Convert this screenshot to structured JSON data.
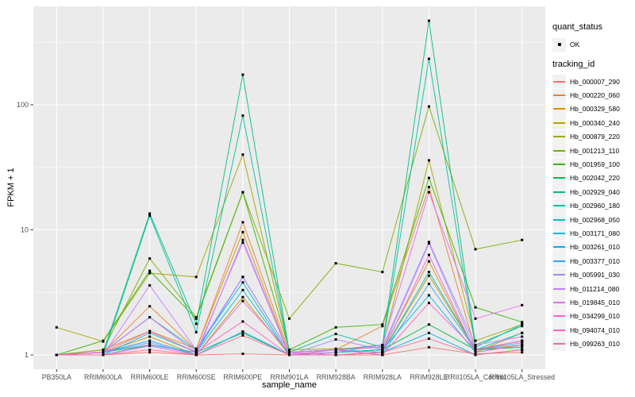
{
  "figure": {
    "bg": "#FFFFFF",
    "panel_bg": "#EBEBEB",
    "grid_color": "#FFFFFF",
    "tick_mark_color": "#333333",
    "tick_label_color": "#4D4D4D",
    "point_color": "#000000",
    "legend_key_bg": "#F2F2F2"
  },
  "chart_data": {
    "type": "line",
    "log_y": true,
    "title": "",
    "xlabel": "sample_name",
    "ylabel": "FPKM + 1",
    "legend_position": "right",
    "grid": "on",
    "point_legend": {
      "title": "quant_status",
      "label": "OK",
      "marker": "black-point"
    },
    "series_legend_title": "tracking_id",
    "y_tick_values": [
      1,
      10,
      100
    ],
    "y_tick_labels": [
      "1",
      "10",
      "100"
    ],
    "y_minor_gridlines": [
      3.1623,
      31.623,
      316.23
    ],
    "ylim": [
      0.93,
      560
    ],
    "categories": [
      "PB350LA",
      "RRIM600LA",
      "RRIM600LE",
      "RRIM600SE",
      "RRIM600PE",
      "RRIM901LA",
      "RRIM928BA",
      "RRIM928LA",
      "RRIM928LE",
      "RRII105LA_Control",
      "RRII105LA_Stressed"
    ],
    "series": [
      {
        "name": "Hb_000007_290",
        "color": "#F8766D",
        "values": [
          1.0,
          1.0,
          1.05,
          1.0,
          1.02,
          1.0,
          1.0,
          1.0,
          1.15,
          1.02,
          1.05
        ]
      },
      {
        "name": "Hb_000220_060",
        "color": "#EA8331",
        "values": [
          1.0,
          1.05,
          2.45,
          1.1,
          11.5,
          1.05,
          1.1,
          1.7,
          22.0,
          1.1,
          1.3
        ]
      },
      {
        "name": "Hb_000329_580",
        "color": "#D89000",
        "values": [
          1.0,
          1.1,
          1.55,
          1.12,
          9.6,
          1.0,
          1.05,
          1.1,
          5.6,
          1.05,
          1.5
        ]
      },
      {
        "name": "Hb_000340_240",
        "color": "#C09B00",
        "values": [
          1.0,
          1.05,
          1.4,
          1.0,
          2.9,
          1.0,
          1.0,
          1.05,
          4.3,
          1.1,
          1.2
        ]
      },
      {
        "name": "Hb_000879_220",
        "color": "#A3A500",
        "values": [
          1.66,
          1.28,
          4.5,
          4.2,
          40.0,
          1.1,
          1.12,
          1.15,
          36.0,
          1.3,
          1.75
        ]
      },
      {
        "name": "Hb_001213_110",
        "color": "#7CAE00",
        "values": [
          1.0,
          1.1,
          5.9,
          2.0,
          20.0,
          1.95,
          5.4,
          4.6,
          97.0,
          7.0,
          8.3
        ]
      },
      {
        "name": "Hb_001959_100",
        "color": "#39B600",
        "values": [
          1.0,
          1.3,
          4.7,
          1.95,
          20.0,
          1.1,
          1.66,
          1.75,
          26.0,
          2.4,
          1.83
        ]
      },
      {
        "name": "Hb_002042_220",
        "color": "#00BB4E",
        "values": [
          1.0,
          1.05,
          1.2,
          1.05,
          1.5,
          1.0,
          1.05,
          1.1,
          1.75,
          1.1,
          1.15
        ]
      },
      {
        "name": "Hb_002929_040",
        "color": "#00BF7D",
        "values": [
          1.0,
          1.05,
          13.5,
          1.77,
          174.0,
          1.05,
          1.1,
          1.2,
          470.0,
          1.2,
          1.7
        ]
      },
      {
        "name": "Hb_002960_180",
        "color": "#00C1A3",
        "values": [
          1.0,
          1.0,
          13.0,
          1.52,
          82.0,
          1.05,
          1.47,
          1.15,
          233.0,
          1.15,
          1.75
        ]
      },
      {
        "name": "Hb_002968_050",
        "color": "#00BFC4",
        "values": [
          1.0,
          1.05,
          2.0,
          1.1,
          3.8,
          1.0,
          1.1,
          1.05,
          4.6,
          1.1,
          1.5
        ]
      },
      {
        "name": "Hb_003171_080",
        "color": "#00BAE0",
        "values": [
          1.0,
          1.0,
          1.5,
          1.05,
          3.3,
          1.0,
          1.05,
          1.1,
          3.0,
          1.05,
          1.2
        ]
      },
      {
        "name": "Hb_003261_010",
        "color": "#00B0F6",
        "values": [
          1.0,
          1.05,
          1.3,
          1.0,
          1.54,
          1.0,
          1.0,
          1.05,
          1.5,
          1.0,
          1.1
        ]
      },
      {
        "name": "Hb_003377_010",
        "color": "#35A2FF",
        "values": [
          1.0,
          1.0,
          1.2,
          1.05,
          4.2,
          1.05,
          1.1,
          1.0,
          3.7,
          1.1,
          1.25
        ]
      },
      {
        "name": "Hb_005991_030",
        "color": "#9590FF",
        "values": [
          1.0,
          1.05,
          1.25,
          1.0,
          8.3,
          1.0,
          1.33,
          1.1,
          7.8,
          1.1,
          1.3
        ]
      },
      {
        "name": "Hb_011214_080",
        "color": "#C77CFF",
        "values": [
          1.0,
          1.0,
          3.6,
          1.1,
          4.2,
          1.05,
          1.1,
          1.15,
          8.0,
          1.2,
          1.4
        ]
      },
      {
        "name": "Hb_019845_010",
        "color": "#E76BF3",
        "values": [
          1.0,
          1.05,
          2.0,
          1.05,
          7.9,
          1.0,
          1.05,
          1.2,
          20.0,
          1.95,
          2.5
        ]
      },
      {
        "name": "Hb_034299_010",
        "color": "#FA62DB",
        "values": [
          1.0,
          1.0,
          1.18,
          1.0,
          2.7,
          1.05,
          1.0,
          1.05,
          6.3,
          1.05,
          1.2
        ]
      },
      {
        "name": "Hb_094074_010",
        "color": "#FF62BC",
        "values": [
          1.0,
          1.05,
          1.55,
          1.05,
          1.85,
          1.0,
          1.1,
          1.0,
          2.6,
          1.1,
          1.3
        ]
      },
      {
        "name": "Hb_099263_010",
        "color": "#FF6A98",
        "values": [
          1.0,
          1.0,
          1.1,
          1.0,
          1.43,
          1.0,
          1.0,
          1.05,
          1.35,
          1.0,
          1.1
        ]
      }
    ]
  }
}
